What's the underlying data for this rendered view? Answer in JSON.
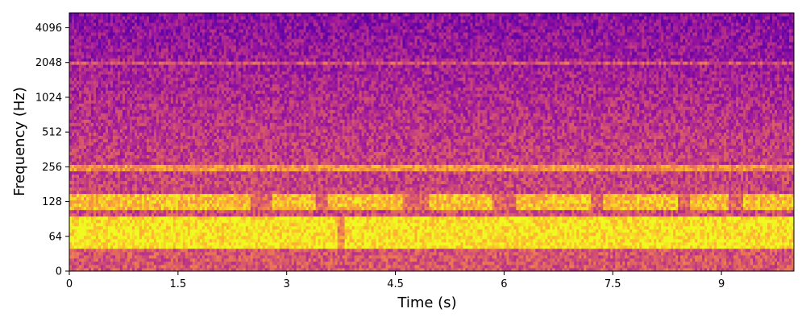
{
  "chart_data": {
    "type": "heatmap",
    "title": "",
    "xlabel": "Time (s)",
    "ylabel": "Frequency (Hz)",
    "xlim": [
      0,
      10
    ],
    "x_ticks": [
      0,
      1.5,
      3,
      4.5,
      6,
      7.5,
      9
    ],
    "x_tick_labels": [
      "0",
      "1.5",
      "3",
      "4.5",
      "6",
      "7.5",
      "9"
    ],
    "y_scale": "symlog base 2 (linear below 64 Hz)",
    "ylim": [
      0,
      5512
    ],
    "y_ticks": [
      0,
      64,
      128,
      256,
      512,
      1024,
      2048,
      4096
    ],
    "y_tick_labels": [
      "0",
      "64",
      "128",
      "256",
      "512",
      "1024",
      "2048",
      "4096"
    ],
    "colormap": "plasma",
    "colormap_stops": [
      "#0d0887",
      "#5c01a6",
      "#9c179e",
      "#cc4778",
      "#ed7953",
      "#fdb42f",
      "#f0f921"
    ],
    "bands": [
      {
        "f_low": 44,
        "f_high": 96,
        "level": 0.95
      },
      {
        "f_low": 112,
        "f_high": 146,
        "level": 0.85
      },
      {
        "f_low": 240,
        "f_high": 275,
        "level": 0.75
      },
      {
        "f_low": 1950,
        "f_high": 2150,
        "level": 0.55
      }
    ],
    "gaps": [
      {
        "t_start": 2.5,
        "t_end": 2.8,
        "f_low": 112,
        "f_high": 146
      },
      {
        "t_start": 3.4,
        "t_end": 3.55,
        "f_low": 112,
        "f_high": 146
      },
      {
        "t_start": 4.6,
        "t_end": 4.95,
        "f_low": 112,
        "f_high": 146
      },
      {
        "t_start": 5.85,
        "t_end": 6.15,
        "f_low": 112,
        "f_high": 146
      },
      {
        "t_start": 7.2,
        "t_end": 7.35,
        "f_low": 112,
        "f_high": 146
      },
      {
        "t_start": 8.4,
        "t_end": 8.55,
        "f_low": 112,
        "f_high": 146
      },
      {
        "t_start": 9.1,
        "t_end": 9.3,
        "f_low": 112,
        "f_high": 146
      },
      {
        "t_start": 3.7,
        "t_end": 3.8,
        "f_low": 0,
        "f_high": 96
      }
    ],
    "legend": "none",
    "grid": false
  }
}
